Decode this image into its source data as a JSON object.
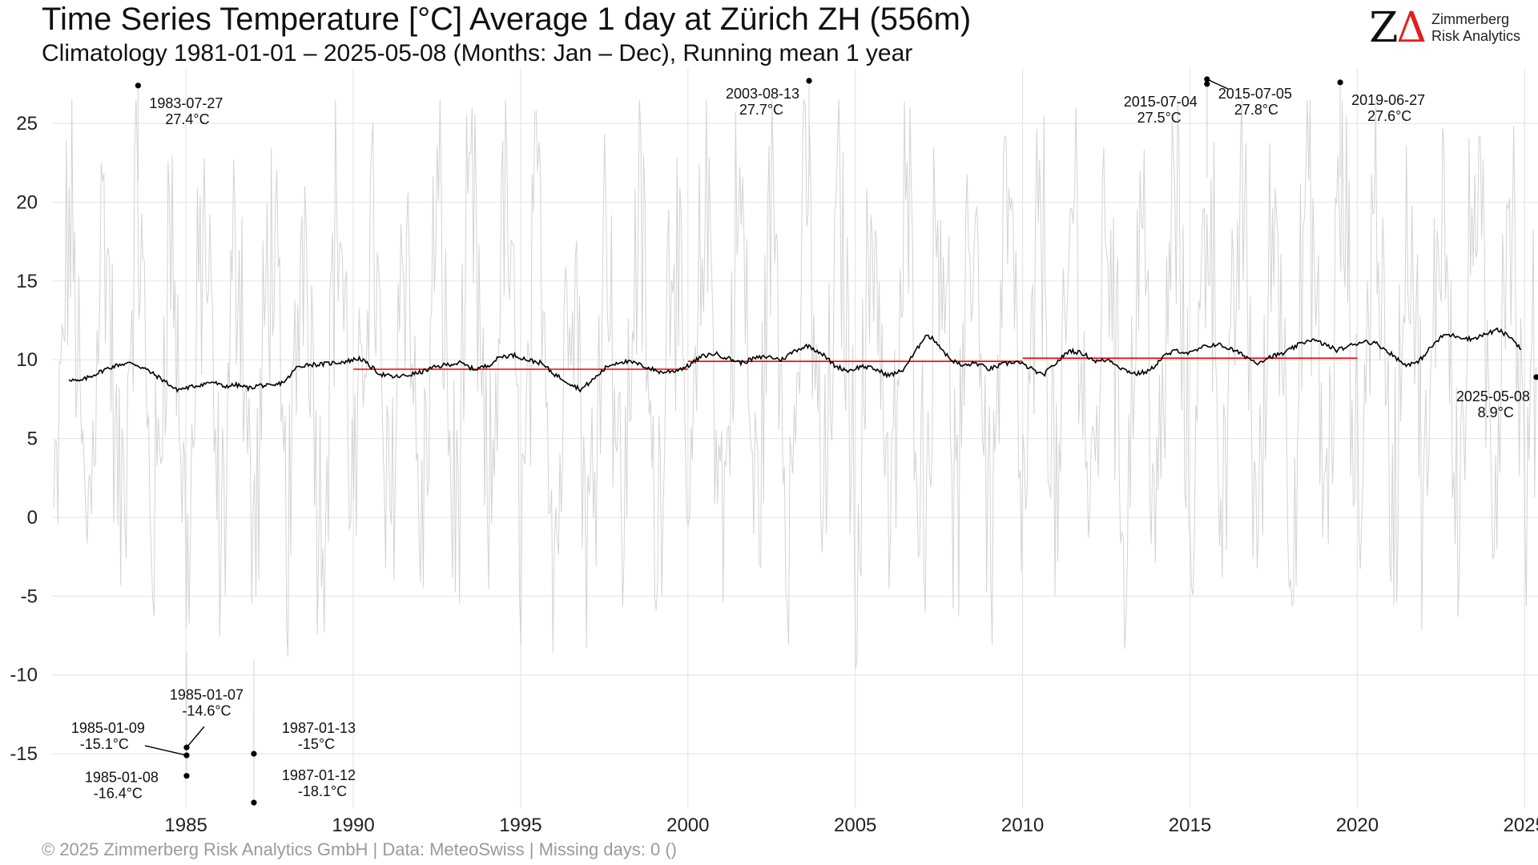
{
  "title": "Time Series Temperature [°C] Average 1 day at Zürich  ZH (556m)",
  "subtitle": "Climatology 1981-01-01 – 2025-05-08 (Months: Jan – Dec), Running mean 1 year",
  "caption": "©  2025 Zimmerberg Risk Analytics GmbH | Data: MeteoSwiss | Missing days: 0 ()",
  "logo": {
    "mark_left": "Z",
    "mark_right": "Δ",
    "line1": "Zimmerberg",
    "line2": "Risk Analytics"
  },
  "colors": {
    "daily": "#d3d3d3",
    "running_mean": "#000000",
    "decadal_mean": "#ff0000",
    "grid": "#e6e6e6",
    "logo_accent": "#e0201b"
  },
  "chart_data": {
    "type": "line",
    "xlim": [
      1981.0,
      2025.4
    ],
    "ylim": [
      -18.5,
      28.0
    ],
    "x_ticks": [
      1985,
      1990,
      1995,
      2000,
      2005,
      2010,
      2015,
      2020,
      2025
    ],
    "x_tick_labels": [
      "1985",
      "1990",
      "1995",
      "2000",
      "2005",
      "2010",
      "2015",
      "2020",
      "2025"
    ],
    "y_ticks": [
      -15,
      -10,
      -5,
      0,
      5,
      10,
      15,
      20,
      25
    ],
    "y_tick_labels": [
      "-15",
      "-10",
      "-5",
      "0",
      "5",
      "10",
      "15",
      "20",
      "25"
    ],
    "grid": true,
    "daily_series": {
      "representation": "daily mean temperature, approx. one value per ~15 days",
      "annual_mean_c": 9.7,
      "seasonal_amplitude_c": 9.5,
      "extremes": [
        {
          "x": 1983.57,
          "y": 27.4
        },
        {
          "x": 2003.62,
          "y": 27.7
        },
        {
          "x": 2015.51,
          "y": 27.5
        },
        {
          "x": 2015.51,
          "y": 27.8
        },
        {
          "x": 2019.49,
          "y": 27.6
        },
        {
          "x": 1985.02,
          "y": -14.6
        },
        {
          "x": 1985.02,
          "y": -15.1
        },
        {
          "x": 1985.02,
          "y": -16.4
        },
        {
          "x": 1987.03,
          "y": -15.0
        },
        {
          "x": 1987.03,
          "y": -18.1
        }
      ]
    },
    "running_mean": [
      [
        1981.5,
        8.8
      ],
      [
        1981.8,
        8.6
      ],
      [
        1982.2,
        9.0
      ],
      [
        1982.6,
        9.4
      ],
      [
        1983.0,
        9.7
      ],
      [
        1983.4,
        9.8
      ],
      [
        1983.8,
        9.4
      ],
      [
        1984.1,
        9.0
      ],
      [
        1984.4,
        8.6
      ],
      [
        1984.7,
        8.1
      ],
      [
        1985.0,
        8.2
      ],
      [
        1985.4,
        8.4
      ],
      [
        1985.8,
        8.6
      ],
      [
        1986.1,
        8.3
      ],
      [
        1986.5,
        8.4
      ],
      [
        1986.9,
        8.2
      ],
      [
        1987.2,
        8.4
      ],
      [
        1987.6,
        8.3
      ],
      [
        1988.0,
        8.7
      ],
      [
        1988.3,
        9.5
      ],
      [
        1988.6,
        9.7
      ],
      [
        1989.0,
        9.7
      ],
      [
        1989.4,
        9.8
      ],
      [
        1989.8,
        9.9
      ],
      [
        1990.2,
        10.1
      ],
      [
        1990.5,
        9.6
      ],
      [
        1990.8,
        9.1
      ],
      [
        1991.2,
        8.9
      ],
      [
        1991.6,
        9.0
      ],
      [
        1992.0,
        9.2
      ],
      [
        1992.4,
        9.5
      ],
      [
        1992.8,
        9.7
      ],
      [
        1993.2,
        9.8
      ],
      [
        1993.6,
        9.4
      ],
      [
        1994.0,
        9.6
      ],
      [
        1994.4,
        10.2
      ],
      [
        1994.8,
        10.3
      ],
      [
        1995.2,
        10.0
      ],
      [
        1995.6,
        9.8
      ],
      [
        1996.0,
        9.1
      ],
      [
        1996.4,
        8.6
      ],
      [
        1996.8,
        8.1
      ],
      [
        1997.2,
        8.8
      ],
      [
        1997.6,
        9.6
      ],
      [
        1998.0,
        9.9
      ],
      [
        1998.4,
        9.8
      ],
      [
        1998.8,
        9.5
      ],
      [
        1999.2,
        9.2
      ],
      [
        1999.6,
        9.3
      ],
      [
        2000.0,
        9.6
      ],
      [
        2000.4,
        10.2
      ],
      [
        2000.8,
        10.4
      ],
      [
        2001.2,
        10.1
      ],
      [
        2001.6,
        9.8
      ],
      [
        2002.0,
        10.1
      ],
      [
        2002.4,
        10.2
      ],
      [
        2002.8,
        10.0
      ],
      [
        2003.2,
        10.6
      ],
      [
        2003.6,
        10.9
      ],
      [
        2004.0,
        10.4
      ],
      [
        2004.4,
        9.6
      ],
      [
        2004.8,
        9.3
      ],
      [
        2005.2,
        9.6
      ],
      [
        2005.6,
        9.4
      ],
      [
        2006.0,
        9.0
      ],
      [
        2006.4,
        9.3
      ],
      [
        2006.8,
        10.5
      ],
      [
        2007.1,
        11.6
      ],
      [
        2007.4,
        11.2
      ],
      [
        2007.8,
        10.1
      ],
      [
        2008.2,
        9.6
      ],
      [
        2008.6,
        9.8
      ],
      [
        2009.0,
        9.4
      ],
      [
        2009.4,
        9.7
      ],
      [
        2009.8,
        9.9
      ],
      [
        2010.2,
        9.5
      ],
      [
        2010.6,
        9.0
      ],
      [
        2011.0,
        9.8
      ],
      [
        2011.4,
        10.6
      ],
      [
        2011.8,
        10.4
      ],
      [
        2012.2,
        9.9
      ],
      [
        2012.6,
        10.0
      ],
      [
        2013.0,
        9.4
      ],
      [
        2013.4,
        9.1
      ],
      [
        2013.8,
        9.3
      ],
      [
        2014.2,
        10.2
      ],
      [
        2014.6,
        10.6
      ],
      [
        2015.0,
        10.4
      ],
      [
        2015.4,
        10.8
      ],
      [
        2015.8,
        11.0
      ],
      [
        2016.2,
        10.7
      ],
      [
        2016.6,
        10.3
      ],
      [
        2017.0,
        9.8
      ],
      [
        2017.4,
        10.2
      ],
      [
        2017.8,
        10.4
      ],
      [
        2018.2,
        10.9
      ],
      [
        2018.6,
        11.3
      ],
      [
        2019.0,
        11.0
      ],
      [
        2019.4,
        10.6
      ],
      [
        2019.8,
        10.9
      ],
      [
        2020.2,
        11.2
      ],
      [
        2020.6,
        11.0
      ],
      [
        2021.0,
        10.4
      ],
      [
        2021.4,
        9.7
      ],
      [
        2021.8,
        9.8
      ],
      [
        2022.2,
        10.8
      ],
      [
        2022.6,
        11.6
      ],
      [
        2023.0,
        11.5
      ],
      [
        2023.4,
        11.3
      ],
      [
        2023.8,
        11.6
      ],
      [
        2024.2,
        11.9
      ],
      [
        2024.6,
        11.4
      ],
      [
        2024.9,
        10.7
      ]
    ],
    "decadal_means": [
      {
        "from": 1990.0,
        "to": 2000.0,
        "value": 9.4
      },
      {
        "from": 2000.0,
        "to": 2010.0,
        "value": 9.9
      },
      {
        "from": 2010.0,
        "to": 2020.0,
        "value": 10.1
      }
    ],
    "annotations": [
      {
        "date": "1983-07-27",
        "value": "27.4°C",
        "x": 1983.57,
        "y": 27.4,
        "side": "below-right"
      },
      {
        "date": "2003-08-13",
        "value": "27.7°C",
        "x": 2003.62,
        "y": 27.7,
        "side": "below-left"
      },
      {
        "date": "2015-07-04",
        "value": "27.5°C",
        "x": 2015.51,
        "y": 27.5,
        "side": "below-left"
      },
      {
        "date": "2015-07-05",
        "value": "27.8°C",
        "x": 2015.51,
        "y": 27.8,
        "side": "below-right-leader"
      },
      {
        "date": "2019-06-27",
        "value": "27.6°C",
        "x": 2019.49,
        "y": 27.6,
        "side": "below-right"
      },
      {
        "date": "2025-05-08",
        "value": "8.9°C",
        "x": 2025.35,
        "y": 8.9,
        "side": "below-left"
      },
      {
        "date": "1985-01-07",
        "value": "-14.6°C",
        "x": 1985.02,
        "y": -14.6,
        "side": "above-leader"
      },
      {
        "date": "1985-01-09",
        "value": "-15.1°C",
        "x": 1985.02,
        "y": -15.1,
        "side": "left-leader"
      },
      {
        "date": "1985-01-08",
        "value": "-16.4°C",
        "x": 1985.02,
        "y": -16.4,
        "side": "left"
      },
      {
        "date": "1987-01-13",
        "value": "-15°C",
        "x": 1987.03,
        "y": -15.0,
        "side": "above-right"
      },
      {
        "date": "1987-01-12",
        "value": "-18.1°C",
        "x": 1987.03,
        "y": -18.1,
        "side": "right"
      }
    ]
  }
}
